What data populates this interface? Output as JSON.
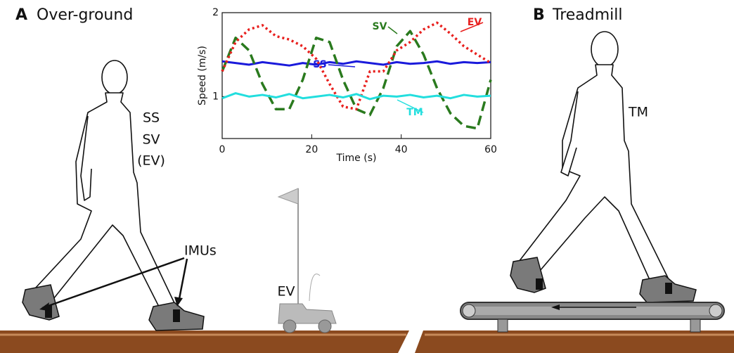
{
  "figure": {
    "panel_a_letter": "A",
    "panel_a_title": "Over-ground",
    "panel_b_letter": "B",
    "panel_b_title": "Treadmill",
    "conditions_a": [
      "SS",
      "SV",
      "(EV)"
    ],
    "imu_label": "IMUs",
    "vehicle_label": "EV",
    "condition_b": "TM"
  },
  "chart_data": {
    "type": "line",
    "xlabel": "Time (s)",
    "ylabel": "Speed (m/s)",
    "x": [
      0,
      3,
      6,
      9,
      12,
      15,
      18,
      21,
      24,
      27,
      30,
      33,
      36,
      39,
      42,
      45,
      48,
      51,
      54,
      57,
      60
    ],
    "xlim": [
      0,
      60
    ],
    "xticks": [
      0,
      20,
      40,
      60
    ],
    "ylim": [
      0.5,
      2
    ],
    "yticks": [
      1,
      2
    ],
    "series": [
      {
        "name": "SS",
        "color": "#1a1adb",
        "style": "solid",
        "values": [
          1.42,
          1.4,
          1.38,
          1.41,
          1.39,
          1.37,
          1.4,
          1.38,
          1.41,
          1.39,
          1.42,
          1.4,
          1.38,
          1.41,
          1.39,
          1.4,
          1.42,
          1.39,
          1.41,
          1.4,
          1.41
        ]
      },
      {
        "name": "SV",
        "color": "#2a7a1e",
        "style": "dashed",
        "values": [
          1.3,
          1.7,
          1.55,
          1.15,
          0.85,
          0.85,
          1.2,
          1.7,
          1.65,
          1.2,
          0.85,
          0.78,
          1.1,
          1.6,
          1.78,
          1.5,
          1.1,
          0.8,
          0.65,
          0.62,
          1.2
        ]
      },
      {
        "name": "EV",
        "color": "#e8201e",
        "style": "dotted",
        "values": [
          1.3,
          1.65,
          1.8,
          1.85,
          1.72,
          1.68,
          1.6,
          1.45,
          1.15,
          0.88,
          0.85,
          1.3,
          1.3,
          1.55,
          1.65,
          1.8,
          1.88,
          1.75,
          1.6,
          1.5,
          1.4
        ]
      },
      {
        "name": "TM",
        "color": "#22dede",
        "style": "solid",
        "values": [
          0.98,
          1.04,
          1.0,
          1.02,
          0.99,
          1.03,
          0.98,
          1.0,
          1.02,
          0.99,
          1.03,
          0.97,
          1.01,
          1.0,
          1.02,
          0.99,
          1.01,
          0.98,
          1.02,
          1.0,
          1.01
        ]
      }
    ]
  }
}
